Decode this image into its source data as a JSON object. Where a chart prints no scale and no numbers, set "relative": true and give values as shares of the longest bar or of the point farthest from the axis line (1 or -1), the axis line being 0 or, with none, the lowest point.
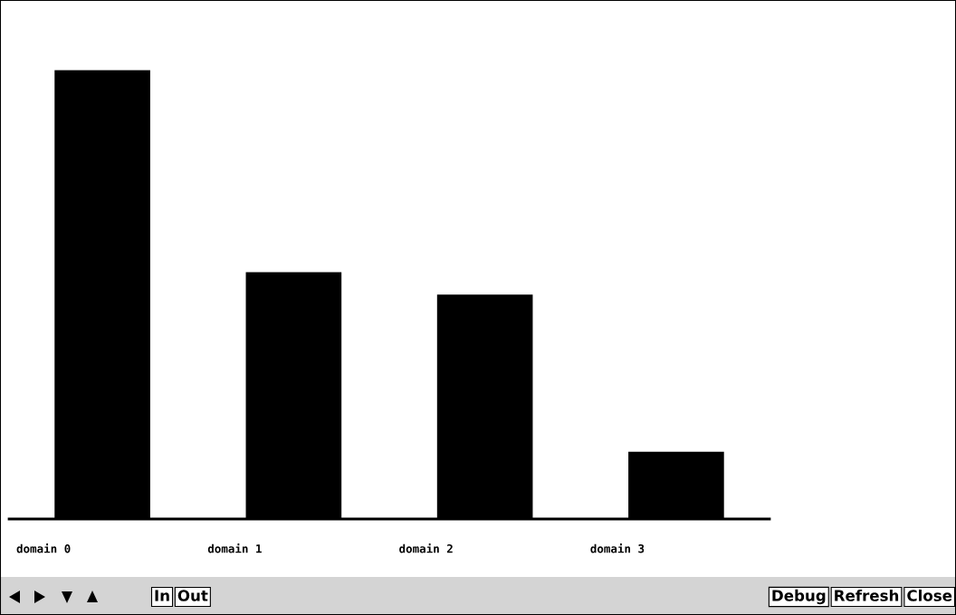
{
  "chart_data": {
    "type": "bar",
    "relative": true,
    "categories": [
      "domain 0",
      "domain 1",
      "domain 2",
      "domain 3"
    ],
    "values": [
      1,
      0.55,
      0.5,
      0.15
    ],
    "color": "#000000",
    "annotations": [
      "In",
      "Out",
      "Debug",
      "Refresh",
      "Close"
    ]
  }
}
